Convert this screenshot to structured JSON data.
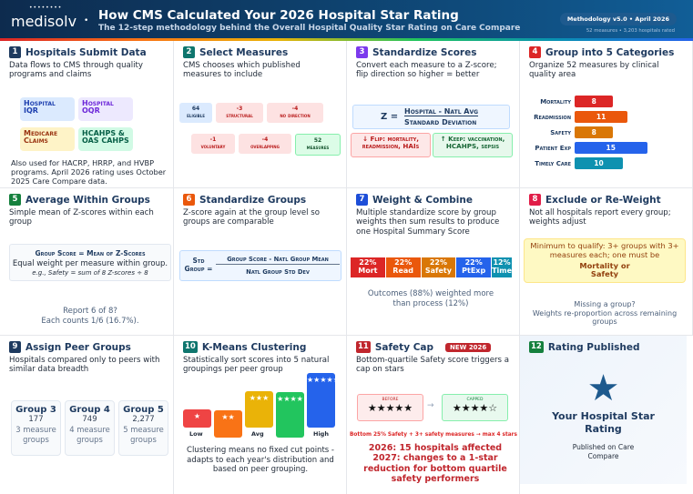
{
  "header": {
    "logo": "medisolv",
    "title": "How CMS Calculated Your 2026 Hospital Star Rating",
    "subtitle": "The 12-step methodology behind the Overall Hospital Quality Star Rating on Care Compare",
    "version": "Methodology v5.0 • April 2026",
    "meta": "52 measures • 3,203 hospitals rated"
  },
  "steps": [
    {
      "num": "1",
      "color": "#1e3a5f",
      "title": "Hospitals Submit Data",
      "desc": "Data flows to CMS through quality programs and claims",
      "sources": [
        {
          "label": "Hospital IQR",
          "bg": "#dbeafe",
          "fg": "#1e40af"
        },
        {
          "label": "Hospital OQR",
          "bg": "#ede9fe",
          "fg": "#6d28d9"
        },
        {
          "label": "Medicare Claims",
          "bg": "#fef3c7",
          "fg": "#9a3412"
        },
        {
          "label": "HCAHPS & OAS CAHPS",
          "bg": "#d1fae5",
          "fg": "#065f46"
        }
      ],
      "note": "Also used for HACRP, HRRP, and HVBP programs. April 2026 rating uses October 2025 Care Compare data."
    },
    {
      "num": "2",
      "color": "#0f766e",
      "title": "Select Measures",
      "desc": "CMS chooses which published measures to include",
      "flow": [
        {
          "value": "64",
          "label": "eligible"
        },
        {
          "value": "-3",
          "label": "structural"
        },
        {
          "value": "-4",
          "label": "no direction"
        },
        {
          "value": "-1",
          "label": "voluntary"
        },
        {
          "value": "-4",
          "label": "overlapping"
        },
        {
          "value": "52",
          "label": "measures"
        }
      ]
    },
    {
      "num": "3",
      "color": "#7c3aed",
      "title": "Standardize Scores",
      "desc": "Convert each measure to a Z-score; flip direction so higher = better",
      "formula_lhs": "Z =",
      "formula_num": "Hospital - Natl Avg",
      "formula_den": "Standard Deviation",
      "flip": "↓ Flip: mortality, readmission, HAIs",
      "keep": "↑ Keep: vaccination, HCAHPS, sepsis"
    },
    {
      "num": "4",
      "color": "#dc2626",
      "title": "Group into 5 Categories",
      "desc": "Organize 52 measures by clinical quality area",
      "categories": [
        {
          "label": "Mortality",
          "count": 8,
          "color": "#dc2626"
        },
        {
          "label": "Readmission",
          "count": 11,
          "color": "#ea580c"
        },
        {
          "label": "Safety",
          "count": 8,
          "color": "#d97706"
        },
        {
          "label": "Patient Exp",
          "count": 15,
          "color": "#2563eb"
        },
        {
          "label": "Timely Care",
          "count": 10,
          "color": "#0e91b0"
        }
      ]
    },
    {
      "num": "5",
      "color": "#15803d",
      "title": "Average Within Groups",
      "desc": "Simple mean of Z-scores within each group",
      "box_title": "Group Score = Mean of Z-Scores",
      "box_text": "Equal weight per measure within group.",
      "box_example": "e.g., Safety = sum of 8 Z-scores ÷ 8",
      "note1": "Report 6 of 8?",
      "note2": "Each counts 1/6 (16.7%)."
    },
    {
      "num": "6",
      "color": "#ea580c",
      "title": "Standardize Groups",
      "desc": "Z-score again at the group level so groups are comparable",
      "lhs": "Std Group =",
      "num_text": "Group Score - Natl Group Mean",
      "den_text": "Natl Group Std Dev"
    },
    {
      "num": "7",
      "color": "#1d4ed8",
      "title": "Weight & Combine",
      "desc": "Multiple standardize score by group weights then sum results to produce one Hospital Summary Score",
      "weights": [
        {
          "pct": "22%",
          "label": "Mort",
          "color": "#dc2626",
          "w": 22
        },
        {
          "pct": "22%",
          "label": "Read",
          "color": "#ea580c",
          "w": 22
        },
        {
          "pct": "22%",
          "label": "Safety",
          "color": "#d97706",
          "w": 22
        },
        {
          "pct": "22%",
          "label": "PtExp",
          "color": "#2563eb",
          "w": 22
        },
        {
          "pct": "12%",
          "label": "Time",
          "color": "#0e91b0",
          "w": 12
        }
      ],
      "note": "Outcomes (88%) weighted more than process (12%)"
    },
    {
      "num": "8",
      "color": "#e11d48",
      "title": "Exclude or Re-Weight",
      "desc": "Not all hospitals report every group; weights adjust",
      "box_text": "Minimum to qualify: 3+ groups with 3+ measures each; one must be",
      "box_bold": "Mortality or Safety",
      "note1": "Missing a group?",
      "note2": "Weights re-proportion across remaining groups"
    },
    {
      "num": "9",
      "color": "#1e3a5f",
      "title": "Assign Peer Groups",
      "desc": "Hospitals compared only to peers with similar data breadth",
      "groups": [
        {
          "name": "Group 3",
          "count": "177",
          "desc": "3 measure groups"
        },
        {
          "name": "Group 4",
          "count": "749",
          "desc": "4 measure groups"
        },
        {
          "name": "Group 5",
          "count": "2,277",
          "desc": "5 measure groups"
        }
      ]
    },
    {
      "num": "10",
      "color": "#0f766e",
      "title": "K-Means Clustering",
      "desc": "Statistically sort scores into 5 natural groupings per peer group",
      "clusters": [
        {
          "stars": "★",
          "color": "#ef4444",
          "level": 1
        },
        {
          "stars": "★★",
          "color": "#f97316",
          "level": 2
        },
        {
          "stars": "★★★",
          "color": "#eab308",
          "level": 3
        },
        {
          "stars": "★★★★",
          "color": "#22c55e",
          "level": 4
        },
        {
          "stars": "★★★★★",
          "color": "#2563eb",
          "level": 5
        }
      ],
      "labels": [
        "Low",
        "Avg",
        "High"
      ],
      "note": "Clustering means no fixed cut points - adapts to each year's distribution and based on peer grouping."
    },
    {
      "num": "11",
      "color": "#c0262d",
      "title": "Safety Cap",
      "badge": "NEW 2026",
      "desc": "Bottom-quartile Safety score triggers a cap on stars",
      "before_label": "BEFORE",
      "before_stars": "★★★★★",
      "after_label": "CAPPED",
      "after_stars": "★★★★☆",
      "rule": "Bottom 25% Safety + 3+ safety measures → max 4 stars",
      "impact": "2026: 15 hospitals affected 2027: changes to a 1-star reduction for bottom quartile safety performers"
    },
    {
      "num": "12",
      "color": "#15803d",
      "title": "Rating Published",
      "big": "Your Hospital Star Rating",
      "small": "Published on Care Compare"
    }
  ]
}
